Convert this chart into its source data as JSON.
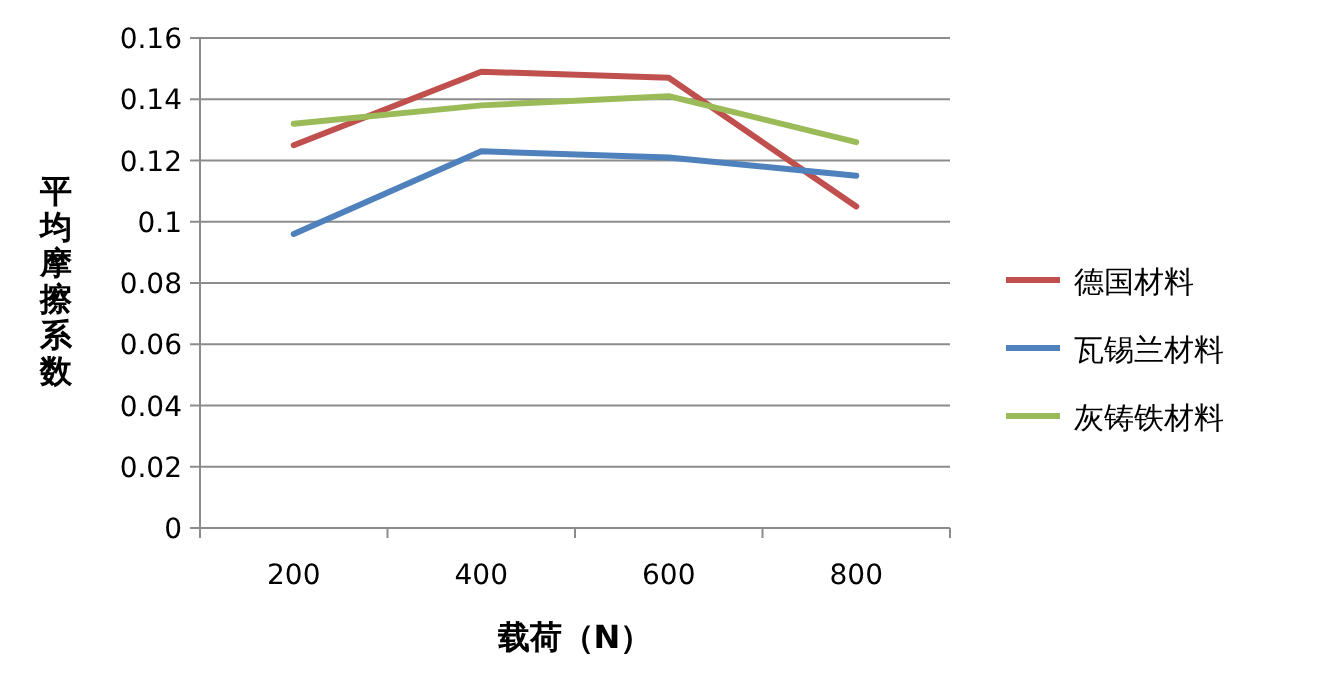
{
  "chart_data": {
    "type": "line",
    "xlabel": "载荷（N）",
    "ylabel": "平均摩擦系数",
    "categories": [
      "200",
      "400",
      "600",
      "800"
    ],
    "series": [
      {
        "name": "德国材料",
        "color": "#c0504d",
        "values": [
          0.125,
          0.149,
          0.147,
          0.105
        ]
      },
      {
        "name": "瓦锡兰材料",
        "color": "#4f81bd",
        "values": [
          0.096,
          0.123,
          0.121,
          0.115
        ]
      },
      {
        "name": "灰铸铁材料",
        "color": "#9bbb59",
        "values": [
          0.132,
          0.138,
          0.141,
          0.126
        ]
      }
    ],
    "ylim": [
      0,
      0.16
    ],
    "yticks": [
      0,
      0.02,
      0.04,
      0.06,
      0.08,
      0.1,
      0.12,
      0.14,
      0.16
    ],
    "grid": "y",
    "legend": "right",
    "marker": "none",
    "line_style": "solid"
  }
}
